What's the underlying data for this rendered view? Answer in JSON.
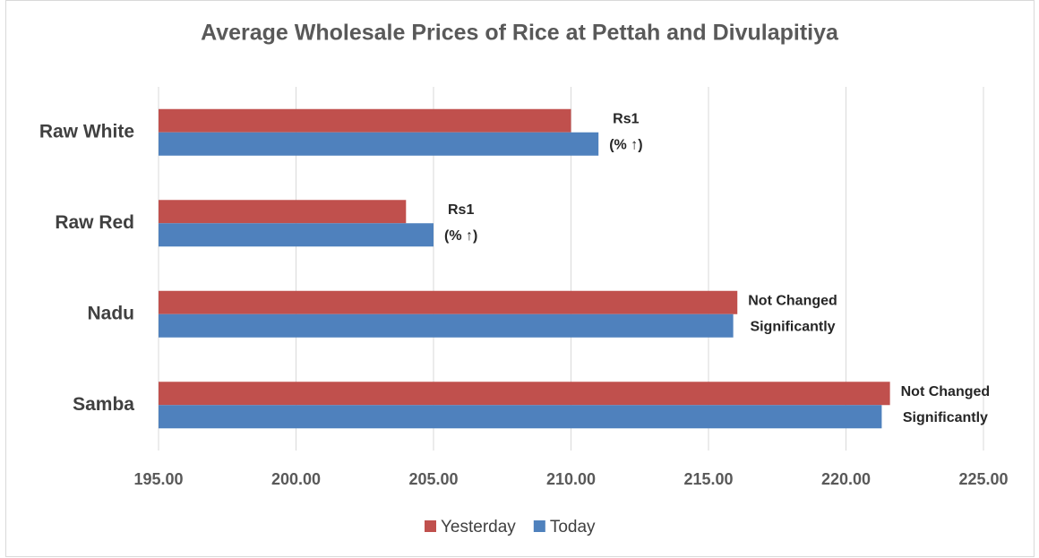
{
  "chart_data": {
    "type": "bar",
    "orientation": "horizontal",
    "title": "Average Wholesale Prices of Rice at Pettah and Divulapitiya",
    "categories": [
      "Raw White",
      "Raw Red",
      "Nadu",
      "Samba"
    ],
    "series": [
      {
        "name": "Yesterday",
        "color": "#c0504d",
        "values": [
          210,
          204,
          216.05,
          221.6
        ]
      },
      {
        "name": "Today",
        "color": "#4f81bd",
        "values": [
          211,
          205,
          215.9,
          221.3
        ]
      }
    ],
    "annotations": [
      [
        "Rs1",
        "(% ↑)"
      ],
      [
        "Rs1",
        "(% ↑)"
      ],
      [
        "Not Changed",
        "Significantly"
      ],
      [
        "Not Changed",
        "Significantly"
      ]
    ],
    "xlim": [
      195,
      225
    ],
    "xticks": [
      {
        "value": 195,
        "label": "195.00"
      },
      {
        "value": 200,
        "label": "200.00"
      },
      {
        "value": 205,
        "label": "205.00"
      },
      {
        "value": 210,
        "label": "210.00"
      },
      {
        "value": 215,
        "label": "215.00"
      },
      {
        "value": 220,
        "label": "220.00"
      },
      {
        "value": 225,
        "label": "225.00"
      }
    ],
    "grid": true,
    "legend": "bottom"
  }
}
